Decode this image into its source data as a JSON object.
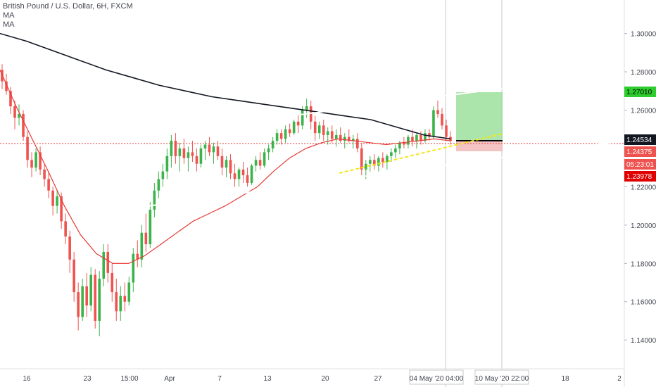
{
  "legend": {
    "symbol": "British Pound / U.S. Dollar, 6H, FXCM",
    "indicators": [
      "MA",
      "MA"
    ]
  },
  "colors": {
    "background": "#ffffff",
    "bull": "#26a69a",
    "bull_body": "#3bb34a",
    "bear": "#ef5350",
    "ma_fast": "#e53935",
    "ma_slow": "#131722",
    "channel": "#ffffff",
    "trendline": "#f5e61a",
    "target_zone": "#8fdc8f",
    "stop_zone": "#f2b8b8",
    "price_line": "#e53935",
    "axis_text": "#434651"
  },
  "chart_data": {
    "type": "candlestick",
    "title": "British Pound / U.S. Dollar, 6H, FXCM",
    "x_ticks": [
      "16",
      "23",
      "15:00",
      "Apr",
      "7",
      "13",
      "20",
      "27",
      "04 May '20  04:00",
      "10 May '20  22:00",
      "18",
      "2"
    ],
    "y_ticks": [
      1.14,
      1.16,
      1.18,
      1.2,
      1.22,
      1.24,
      1.26,
      1.28,
      1.3
    ],
    "y_tick_labels": [
      "1.14000",
      "1.16000",
      "1.18000",
      "1.20000",
      "1.22000",
      "1.24000",
      "1.26000",
      "1.28000",
      "1.30000"
    ],
    "ylim": [
      1.125,
      1.3175
    ],
    "grid": false,
    "price_labels": [
      {
        "label": "1.27010",
        "value": 1.2701,
        "kind": "target"
      },
      {
        "label": "1.24534",
        "value": 1.24534,
        "kind": "current"
      },
      {
        "label": "1.24375",
        "value": 1.24375,
        "kind": "bid"
      },
      {
        "label": "05:23:01",
        "value": 1.2405,
        "kind": "countdown"
      },
      {
        "label": "1.23978",
        "value": 1.23978,
        "kind": "stop"
      }
    ],
    "candles_ohlc": [
      [
        1.281,
        1.284,
        1.271,
        1.275
      ],
      [
        1.275,
        1.279,
        1.268,
        1.27
      ],
      [
        1.27,
        1.272,
        1.258,
        1.262
      ],
      [
        1.262,
        1.265,
        1.25,
        1.256
      ],
      [
        1.256,
        1.263,
        1.252,
        1.258
      ],
      [
        1.258,
        1.26,
        1.244,
        1.246
      ],
      [
        1.246,
        1.249,
        1.23,
        1.234
      ],
      [
        1.234,
        1.238,
        1.225,
        1.23
      ],
      [
        1.23,
        1.24,
        1.228,
        1.238
      ],
      [
        1.238,
        1.241,
        1.226,
        1.229
      ],
      [
        1.229,
        1.232,
        1.22,
        1.224
      ],
      [
        1.224,
        1.228,
        1.214,
        1.218
      ],
      [
        1.218,
        1.22,
        1.205,
        1.21
      ],
      [
        1.21,
        1.218,
        1.206,
        1.215
      ],
      [
        1.215,
        1.217,
        1.198,
        1.202
      ],
      [
        1.202,
        1.206,
        1.19,
        1.194
      ],
      [
        1.194,
        1.197,
        1.175,
        1.182
      ],
      [
        1.182,
        1.186,
        1.16,
        1.165
      ],
      [
        1.165,
        1.17,
        1.145,
        1.152
      ],
      [
        1.152,
        1.172,
        1.15,
        1.168
      ],
      [
        1.168,
        1.175,
        1.152,
        1.158
      ],
      [
        1.158,
        1.178,
        1.155,
        1.174
      ],
      [
        1.174,
        1.177,
        1.146,
        1.15
      ],
      [
        1.15,
        1.176,
        1.142,
        1.172
      ],
      [
        1.172,
        1.19,
        1.168,
        1.186
      ],
      [
        1.186,
        1.19,
        1.17,
        1.175
      ],
      [
        1.175,
        1.18,
        1.16,
        1.165
      ],
      [
        1.165,
        1.172,
        1.15,
        1.155
      ],
      [
        1.155,
        1.168,
        1.15,
        1.163
      ],
      [
        1.163,
        1.17,
        1.155,
        1.16
      ],
      [
        1.16,
        1.173,
        1.158,
        1.17
      ],
      [
        1.17,
        1.188,
        1.165,
        1.185
      ],
      [
        1.185,
        1.192,
        1.178,
        1.182
      ],
      [
        1.182,
        1.2,
        1.178,
        1.196
      ],
      [
        1.196,
        1.206,
        1.186,
        1.19
      ],
      [
        1.19,
        1.212,
        1.188,
        1.208
      ],
      [
        1.208,
        1.222,
        1.204,
        1.218
      ],
      [
        1.218,
        1.228,
        1.214,
        1.224
      ],
      [
        1.224,
        1.232,
        1.22,
        1.228
      ],
      [
        1.228,
        1.24,
        1.224,
        1.236
      ],
      [
        1.236,
        1.247,
        1.23,
        1.244
      ],
      [
        1.244,
        1.248,
        1.232,
        1.236
      ],
      [
        1.236,
        1.243,
        1.228,
        1.24
      ],
      [
        1.24,
        1.245,
        1.232,
        1.235
      ],
      [
        1.235,
        1.241,
        1.228,
        1.238
      ],
      [
        1.238,
        1.244,
        1.233,
        1.236
      ],
      [
        1.236,
        1.24,
        1.228,
        1.232
      ],
      [
        1.232,
        1.242,
        1.23,
        1.24
      ],
      [
        1.24,
        1.244,
        1.234,
        1.242
      ],
      [
        1.242,
        1.246,
        1.236,
        1.238
      ],
      [
        1.238,
        1.243,
        1.232,
        1.241
      ],
      [
        1.241,
        1.244,
        1.234,
        1.236
      ],
      [
        1.236,
        1.24,
        1.226,
        1.23
      ],
      [
        1.23,
        1.236,
        1.225,
        1.234
      ],
      [
        1.234,
        1.237,
        1.224,
        1.227
      ],
      [
        1.227,
        1.232,
        1.22,
        1.224
      ],
      [
        1.224,
        1.23,
        1.22,
        1.229
      ],
      [
        1.229,
        1.233,
        1.222,
        1.226
      ],
      [
        1.226,
        1.23,
        1.22,
        1.222
      ],
      [
        1.222,
        1.232,
        1.221,
        1.231
      ],
      [
        1.231,
        1.236,
        1.228,
        1.234
      ],
      [
        1.234,
        1.238,
        1.229,
        1.231
      ],
      [
        1.231,
        1.24,
        1.23,
        1.238
      ],
      [
        1.238,
        1.242,
        1.234,
        1.24
      ],
      [
        1.24,
        1.246,
        1.238,
        1.244
      ],
      [
        1.244,
        1.25,
        1.242,
        1.248
      ],
      [
        1.248,
        1.25,
        1.242,
        1.245
      ],
      [
        1.245,
        1.252,
        1.243,
        1.25
      ],
      [
        1.25,
        1.253,
        1.246,
        1.248
      ],
      [
        1.248,
        1.255,
        1.247,
        1.254
      ],
      [
        1.254,
        1.258,
        1.248,
        1.252
      ],
      [
        1.252,
        1.262,
        1.25,
        1.26
      ],
      [
        1.26,
        1.266,
        1.256,
        1.262
      ],
      [
        1.262,
        1.265,
        1.25,
        1.254
      ],
      [
        1.254,
        1.257,
        1.244,
        1.248
      ],
      [
        1.248,
        1.254,
        1.245,
        1.252
      ],
      [
        1.252,
        1.255,
        1.244,
        1.247
      ],
      [
        1.247,
        1.251,
        1.242,
        1.249
      ],
      [
        1.249,
        1.252,
        1.243,
        1.245
      ],
      [
        1.245,
        1.25,
        1.241,
        1.247
      ],
      [
        1.247,
        1.251,
        1.243,
        1.244
      ],
      [
        1.244,
        1.248,
        1.24,
        1.246
      ],
      [
        1.246,
        1.25,
        1.243,
        1.244
      ],
      [
        1.244,
        1.247,
        1.24,
        1.245
      ],
      [
        1.245,
        1.248,
        1.238,
        1.24
      ],
      [
        1.24,
        1.243,
        1.226,
        1.229
      ],
      [
        1.229,
        1.234,
        1.224,
        1.232
      ],
      [
        1.232,
        1.236,
        1.228,
        1.234
      ],
      [
        1.234,
        1.237,
        1.229,
        1.231
      ],
      [
        1.231,
        1.236,
        1.228,
        1.235
      ],
      [
        1.235,
        1.238,
        1.23,
        1.233
      ],
      [
        1.233,
        1.237,
        1.229,
        1.236
      ],
      [
        1.236,
        1.24,
        1.233,
        1.238
      ],
      [
        1.238,
        1.242,
        1.235,
        1.24
      ],
      [
        1.24,
        1.244,
        1.237,
        1.243
      ],
      [
        1.243,
        1.246,
        1.24,
        1.242
      ],
      [
        1.242,
        1.247,
        1.24,
        1.246
      ],
      [
        1.246,
        1.25,
        1.241,
        1.244
      ],
      [
        1.244,
        1.248,
        1.24,
        1.247
      ],
      [
        1.247,
        1.249,
        1.242,
        1.244
      ],
      [
        1.244,
        1.25,
        1.243,
        1.248
      ],
      [
        1.248,
        1.25,
        1.244,
        1.246
      ],
      [
        1.246,
        1.262,
        1.245,
        1.26
      ],
      [
        1.26,
        1.265,
        1.256,
        1.258
      ],
      [
        1.258,
        1.261,
        1.25,
        1.252
      ],
      [
        1.252,
        1.255,
        1.244,
        1.246
      ],
      [
        1.246,
        1.249,
        1.242,
        1.244
      ]
    ],
    "ma_fast": [
      1.281,
      1.262,
      1.245,
      1.228,
      1.21,
      1.195,
      1.185,
      1.18,
      1.18,
      1.184,
      1.19,
      1.196,
      1.202,
      1.206,
      1.21,
      1.215,
      1.22,
      1.228,
      1.235,
      1.24,
      1.243,
      1.245,
      1.244,
      1.243,
      1.242,
      1.243,
      1.244,
      1.245,
      1.244
    ],
    "ma_slow": [
      1.3,
      1.296,
      1.291,
      1.286,
      1.281,
      1.277,
      1.273,
      1.27,
      1.267,
      1.265,
      1.263,
      1.261,
      1.259,
      1.257,
      1.255,
      1.251,
      1.247,
      1.245
    ],
    "channel_upper": [
      [
        1.2475,
        1.281
      ]
    ],
    "channel_lower": [
      [
        1.2095,
        1.2475
      ]
    ],
    "trendline_yellow": [
      1.2265,
      1.2485
    ],
    "position": {
      "entry": 1.24534,
      "target": 1.2701,
      "stop": 1.23978
    }
  }
}
